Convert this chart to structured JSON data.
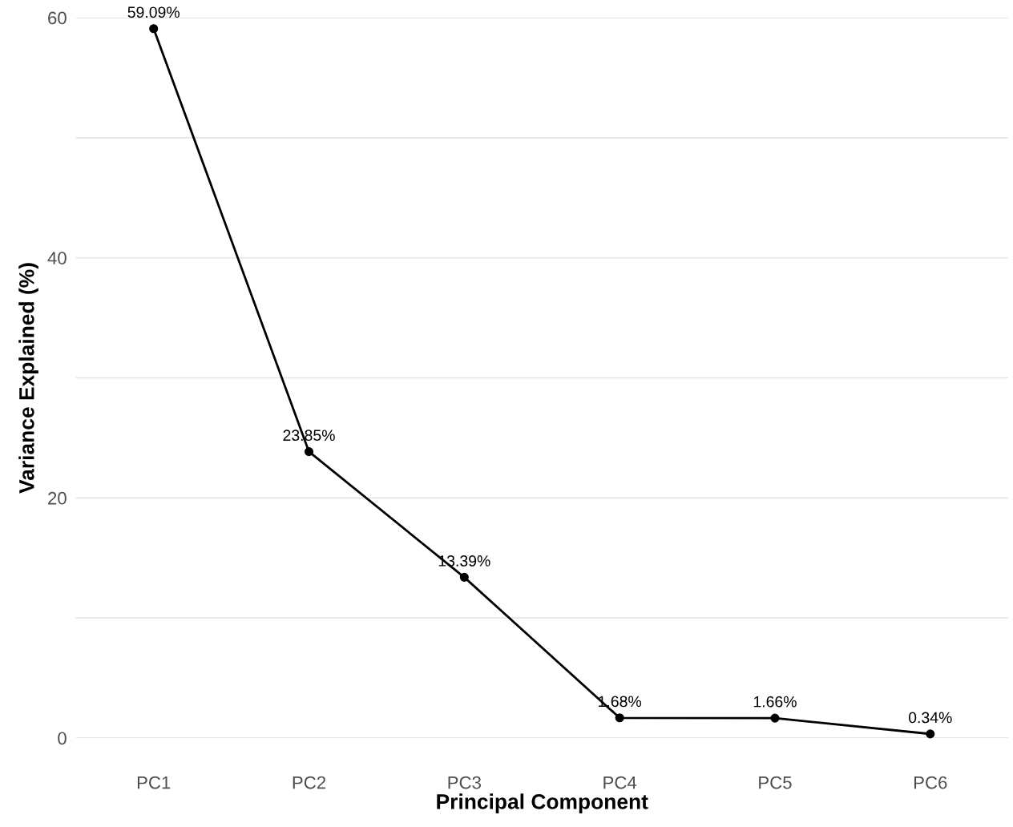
{
  "chart_data": {
    "type": "line",
    "xlabel": "Principal Component",
    "ylabel": "Variance Explained (%)",
    "categories": [
      "PC1",
      "PC2",
      "PC3",
      "PC4",
      "PC5",
      "PC6"
    ],
    "series": [
      {
        "color": "#000000",
        "values": [
          59.09,
          23.85,
          13.39,
          1.68,
          1.66,
          0.34
        ],
        "value_labels": [
          "59.09%",
          "23.85%",
          "13.39%",
          "1.68%",
          "1.66%",
          "0.34%"
        ]
      }
    ],
    "ylim": [
      0,
      60
    ],
    "yticks": [
      0,
      {
        "value": 10,
        "label": null
      },
      20,
      {
        "value": 30,
        "label": null
      },
      40,
      {
        "value": 50,
        "label": null
      },
      60
    ],
    "grid": "y",
    "marker": "circle",
    "line_style": "solid",
    "legend": false
  }
}
